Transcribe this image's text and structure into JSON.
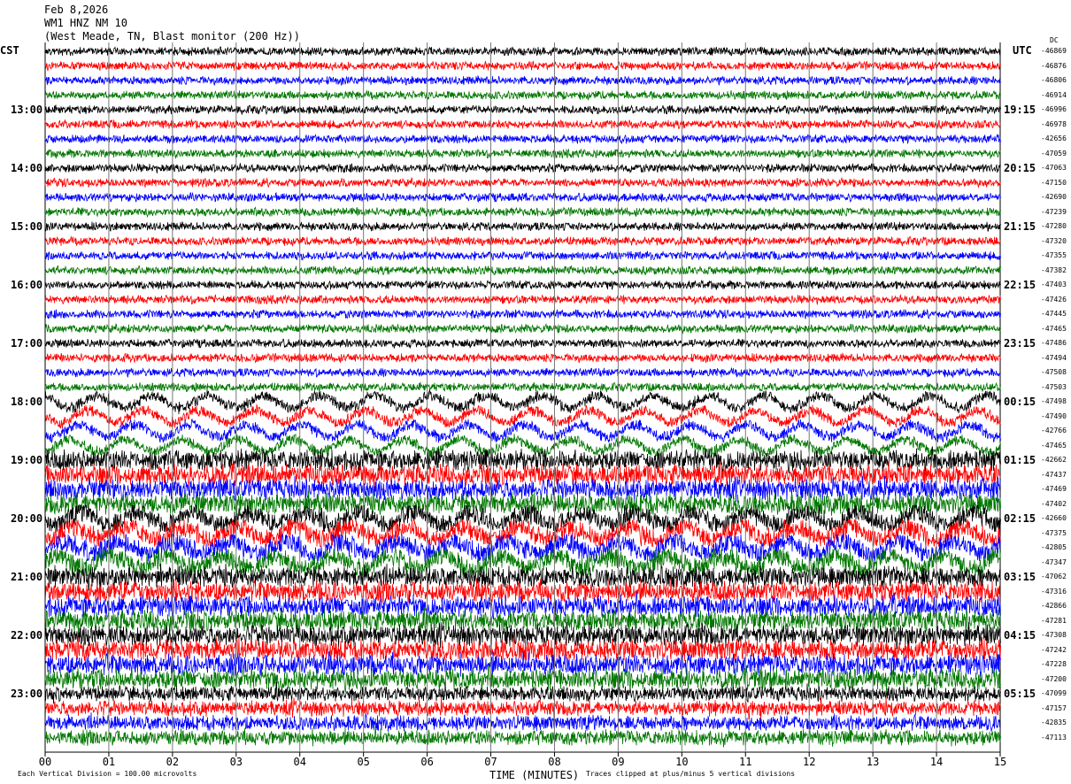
{
  "header": {
    "date": "Feb 8,2026",
    "station": "WM1 HNZ NM 10",
    "location": "(West Meade, TN, Blast monitor (200 Hz))"
  },
  "chart_data": {
    "type": "line",
    "title": "",
    "xlabel": "TIME (MINUTES)",
    "x_ticks": [
      "00",
      "01",
      "02",
      "03",
      "04",
      "05",
      "06",
      "07",
      "08",
      "09",
      "10",
      "11",
      "12",
      "13",
      "14",
      "15"
    ],
    "xlim": [
      0,
      15
    ],
    "grid": "vertical lines every minute",
    "left_timezone": "CST",
    "right_timezone": "UTC",
    "left_hour_labels": [
      "13:00",
      "14:00",
      "15:00",
      "16:00",
      "17:00",
      "18:00",
      "19:00",
      "20:00",
      "21:00",
      "22:00",
      "23:00"
    ],
    "right_hour_labels": [
      "19:15",
      "20:15",
      "21:15",
      "22:15",
      "23:15",
      "00:15",
      "01:15",
      "02:15",
      "03:15",
      "04:15",
      "05:15"
    ],
    "dc_header": "DC",
    "dc_values": [
      -46869,
      -46876,
      -46806,
      -46914,
      -46996,
      -46978,
      -42656,
      -47059,
      -47063,
      -47150,
      -42690,
      -47239,
      -47280,
      -47320,
      -47355,
      -47382,
      -47403,
      -47426,
      -47445,
      -47465,
      -47486,
      -47494,
      -47508,
      -47503,
      -47498,
      -47490,
      -42766,
      -47465,
      -42662,
      -47437,
      -47469,
      -47402,
      -42660,
      -47375,
      -42805,
      -47347,
      -47062,
      -47316,
      -42866,
      -47281,
      -47308,
      -47242,
      -47228,
      -47200,
      -47099,
      -47157,
      -42835,
      -47113
    ],
    "trace_colors": [
      "#000000",
      "#ff0000",
      "#0000ff",
      "#007700"
    ],
    "footer_left": "Each Vertical Division =  100.00 microvolts",
    "footer_right": "Traces clipped at plus/minus 5 vertical divisions"
  }
}
